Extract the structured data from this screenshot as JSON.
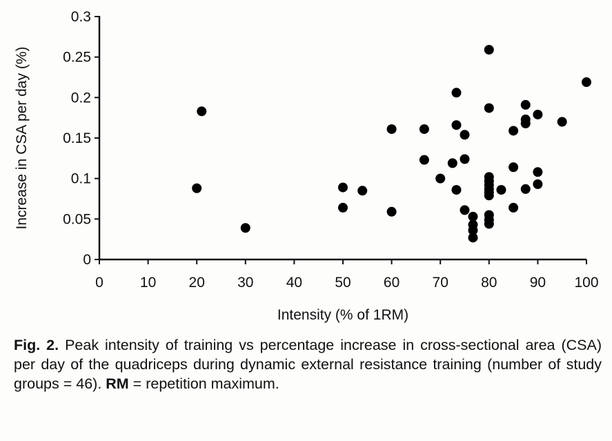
{
  "chart_data": {
    "type": "scatter",
    "title": "",
    "xlabel": "Intensity  (% of 1RM)",
    "ylabel": "Increase in CSA per day (%)",
    "xlim": [
      0,
      100
    ],
    "ylim": [
      0,
      0.3
    ],
    "xticks": [
      "0",
      "10",
      "20",
      "30",
      "40",
      "50",
      "60",
      "70",
      "80",
      "90",
      "100"
    ],
    "yticks": [
      "0",
      "0.05",
      "0.1",
      "0.15",
      "0.2",
      "0.25",
      "0.3"
    ],
    "grid": false,
    "legend": "none",
    "marker_color": "#000000",
    "points": [
      [
        20,
        0.088
      ],
      [
        21,
        0.183
      ],
      [
        30,
        0.039
      ],
      [
        50,
        0.089
      ],
      [
        50,
        0.064
      ],
      [
        54,
        0.085
      ],
      [
        60,
        0.161
      ],
      [
        60,
        0.059
      ],
      [
        66.7,
        0.161
      ],
      [
        66.7,
        0.123
      ],
      [
        70,
        0.1
      ],
      [
        72.5,
        0.119
      ],
      [
        73.3,
        0.206
      ],
      [
        73.3,
        0.166
      ],
      [
        73.3,
        0.086
      ],
      [
        75,
        0.154
      ],
      [
        75,
        0.124
      ],
      [
        75,
        0.061
      ],
      [
        76.7,
        0.053
      ],
      [
        76.7,
        0.043
      ],
      [
        76.7,
        0.036
      ],
      [
        76.7,
        0.027
      ],
      [
        80,
        0.259
      ],
      [
        80,
        0.187
      ],
      [
        80,
        0.102
      ],
      [
        80,
        0.097
      ],
      [
        80,
        0.092
      ],
      [
        80,
        0.087
      ],
      [
        80,
        0.083
      ],
      [
        80,
        0.079
      ],
      [
        80,
        0.055
      ],
      [
        80,
        0.049
      ],
      [
        80,
        0.044
      ],
      [
        82.5,
        0.086
      ],
      [
        85,
        0.159
      ],
      [
        85,
        0.114
      ],
      [
        85,
        0.064
      ],
      [
        87.5,
        0.191
      ],
      [
        87.5,
        0.173
      ],
      [
        87.5,
        0.168
      ],
      [
        87.5,
        0.087
      ],
      [
        90,
        0.179
      ],
      [
        90,
        0.108
      ],
      [
        90,
        0.093
      ],
      [
        95,
        0.17
      ],
      [
        100,
        0.219
      ]
    ]
  },
  "caption": {
    "label": "Fig. 2.",
    "text1": " Peak intensity of training vs percentage increase in cross-sectional area (CSA) per day of the quadriceps during dynamic external resistance training (number of study groups = 46). ",
    "rm": "RM",
    "text2": " = repetition maximum."
  }
}
